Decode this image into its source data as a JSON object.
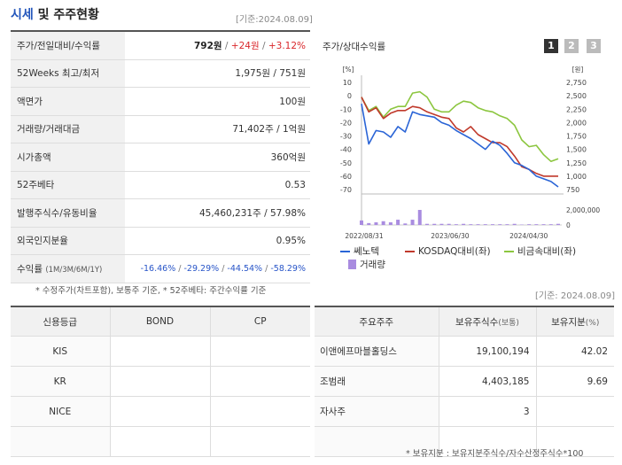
{
  "header": {
    "title_accent": "시세",
    "title_rest": " 및 주주현황",
    "date": "[기준:2024.08.09]"
  },
  "quote": {
    "rows": [
      {
        "label": "주가/전일대비/수익률",
        "price": "792원",
        "change": "+24원",
        "pct": "+3.12%"
      },
      {
        "label": "52Weeks 최고/최저",
        "value": "1,975원 / 751원"
      },
      {
        "label": "액면가",
        "value": "100원"
      },
      {
        "label": "거래량/거래대금",
        "value": "71,402주 / 1억원"
      },
      {
        "label": "시가총액",
        "value": "360억원"
      },
      {
        "label": "52주베타",
        "value": "0.53"
      },
      {
        "label": "발행주식수/유동비율",
        "value": "45,460,231주 / 57.98%"
      },
      {
        "label": "외국인지분율",
        "value": "0.95%"
      },
      {
        "label": "수익률",
        "label_sub": "(1M/3M/6M/1Y)",
        "returns": [
          "-16.46%",
          "-29.29%",
          "-44.54%",
          "-58.29%"
        ]
      }
    ],
    "note": "* 수정주가(차트포함), 보통주 기준, * 52주베타: 주간수익률 기준"
  },
  "chart_panel": {
    "title": "주가/상대수익률",
    "period_buttons": [
      "1",
      "2",
      "3"
    ],
    "active_button": 0,
    "button_colors": {
      "active": "#333333",
      "inactive": "#bbbbbb"
    },
    "left_unit": "[%]",
    "right_unit": "[원]",
    "date": "[기준: 2024.08.09]"
  },
  "chart_data": {
    "type": "line",
    "x_labels": [
      "2022/08/31",
      "2023/06/30",
      "2024/04/30"
    ],
    "left_axis": {
      "ticks": [
        10,
        0,
        -10,
        -20,
        -30,
        -40,
        -50,
        -60,
        -70
      ],
      "range": [
        -70,
        10
      ]
    },
    "right_axis": {
      "ticks": [
        "2,750",
        "2,500",
        "2,250",
        "2,000",
        "1,750",
        "1,500",
        "1,250",
        "1,000",
        "750"
      ],
      "range": [
        750,
        2750
      ]
    },
    "volume_axis": {
      "ticks": [
        "2,000,000",
        "0"
      ],
      "range": [
        0,
        2000000
      ]
    },
    "series": [
      {
        "name": "쎄노텍",
        "color": "#2a64d6",
        "values": [
          -6,
          -36,
          -26,
          -27,
          -31,
          -23,
          -27,
          -12,
          -14,
          -15,
          -16,
          -20,
          -22,
          -26,
          -29,
          -32,
          -36,
          -40,
          -34,
          -37,
          -43,
          -50,
          -52,
          -55,
          -60,
          -62,
          -64,
          -68
        ]
      },
      {
        "name": "KOSDAQ대비(좌)",
        "color": "#c0392b",
        "values": [
          -1,
          -12,
          -9,
          -17,
          -13,
          -11,
          -11,
          -8,
          -9,
          -12,
          -14,
          -16,
          -17,
          -24,
          -27,
          -23,
          -29,
          -32,
          -35,
          -35,
          -38,
          -45,
          -53,
          -55,
          -58,
          -60,
          -60,
          -60
        ]
      },
      {
        "name": "비금속대비(좌)",
        "color": "#8cc63f",
        "values": [
          -1,
          -11,
          -8,
          -16,
          -10,
          -8,
          -8,
          2,
          3,
          -1,
          -10,
          -12,
          -12,
          -7,
          -4,
          -5,
          -9,
          -11,
          -12,
          -15,
          -17,
          -22,
          -33,
          -38,
          -37,
          -44,
          -49,
          -47
        ]
      }
    ],
    "volume": {
      "name": "거래량",
      "color": "#a98ce0",
      "values": [
        600000,
        250000,
        350000,
        500000,
        350000,
        700000,
        200000,
        700000,
        2000000,
        150000,
        150000,
        150000,
        150000,
        100000,
        150000,
        100000,
        100000,
        100000,
        100000,
        100000,
        100000,
        150000,
        50000,
        100000,
        100000,
        100000,
        100000,
        150000
      ]
    }
  },
  "credit": {
    "headers": [
      "신용등급",
      "BOND",
      "CP"
    ],
    "rows": [
      {
        "agency": "KIS",
        "bond": "",
        "cp": ""
      },
      {
        "agency": "KR",
        "bond": "",
        "cp": ""
      },
      {
        "agency": "NICE",
        "bond": "",
        "cp": ""
      },
      {
        "agency": "",
        "bond": "",
        "cp": ""
      }
    ]
  },
  "holders": {
    "headers": {
      "name": "주요주주",
      "shares": "보유주식수",
      "shares_unit": "(보통)",
      "ratio": "보유지분",
      "ratio_unit": "(%)"
    },
    "rows": [
      {
        "name": "이앤에프마블홀딩스",
        "shares": "19,100,194",
        "ratio": "42.02"
      },
      {
        "name": "조범래",
        "shares": "4,403,185",
        "ratio": "9.69"
      },
      {
        "name": "자사주",
        "shares": "3",
        "ratio": ""
      },
      {
        "name": "",
        "shares": "",
        "ratio": ""
      }
    ],
    "note": "* 보유지분 : 보유지분주식수/자수산정주식수*100"
  }
}
